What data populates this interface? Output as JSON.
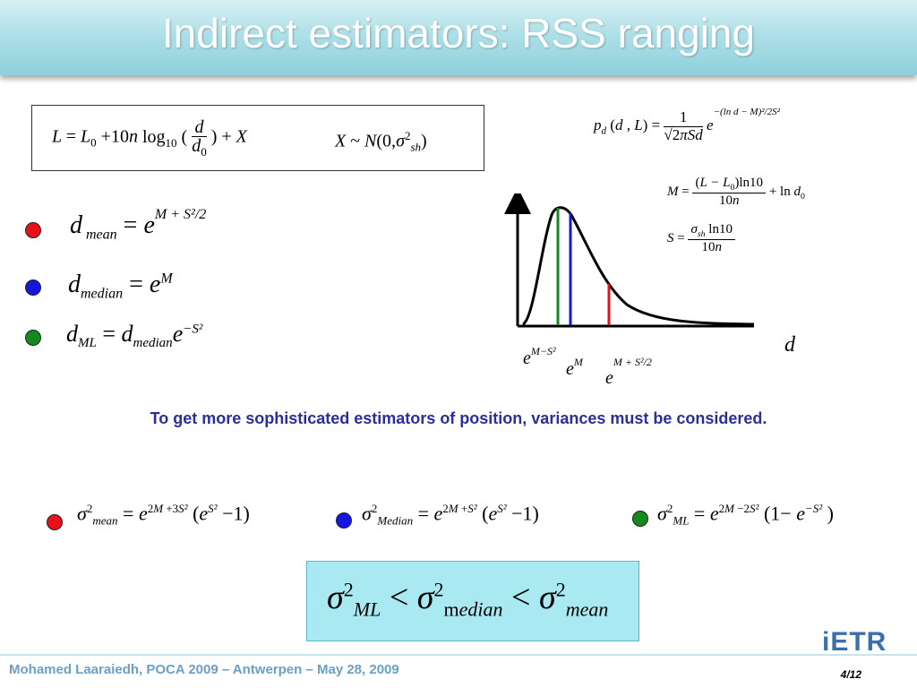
{
  "slide": {
    "title": "Indirect estimators: RSS ranging",
    "note": "To get more sophisticated estimators of position, variances must be considered.",
    "footer": "Mohamed Laaraiedh, POCA 2009 – Antwerpen – May 28, 2009",
    "page": "4/12",
    "logo_text": "iETR"
  },
  "colors": {
    "red": "#e8101a",
    "blue": "#1515e0",
    "green": "#138a1c",
    "title_text": "#ffffff",
    "note_text": "#2a2f9a",
    "footer_text": "#6aa0c8",
    "box_fill": "#a9e9f2"
  },
  "formulas": {
    "pathloss_model": "L = L0 + 10n log10(d/d0) + X",
    "noise_model": "X ~ N(0, σ²sh)",
    "pdf": "pd(d, L) = 1/(√(2π) S d) · e^(−(ln d − M)² / (2S²))",
    "M_def": "M = (L − L0) ln10 / (10n) + ln d0",
    "S_def": "S = σsh ln10 / (10n)",
    "d_mean": "d_mean = e^(M + S²/2)",
    "d_median": "d_median = e^M",
    "d_ml": "d_ML = d_median e^(−S²)",
    "var_mean": "σ²mean = e^(2M+3S²) (e^(S²) − 1)",
    "var_median": "σ²Median = e^(2M+S²) (e^(S²) − 1)",
    "var_ml": "σ²ML = e^(2M−2S²) (1 − e^(−S²))",
    "inequality": "σ²ML < σ²median < σ²mean"
  },
  "chart": {
    "x_axis_label": "d",
    "marker_labels": [
      "e^(M−S²)",
      "e^M",
      "e^(M+S²/2)"
    ]
  }
}
